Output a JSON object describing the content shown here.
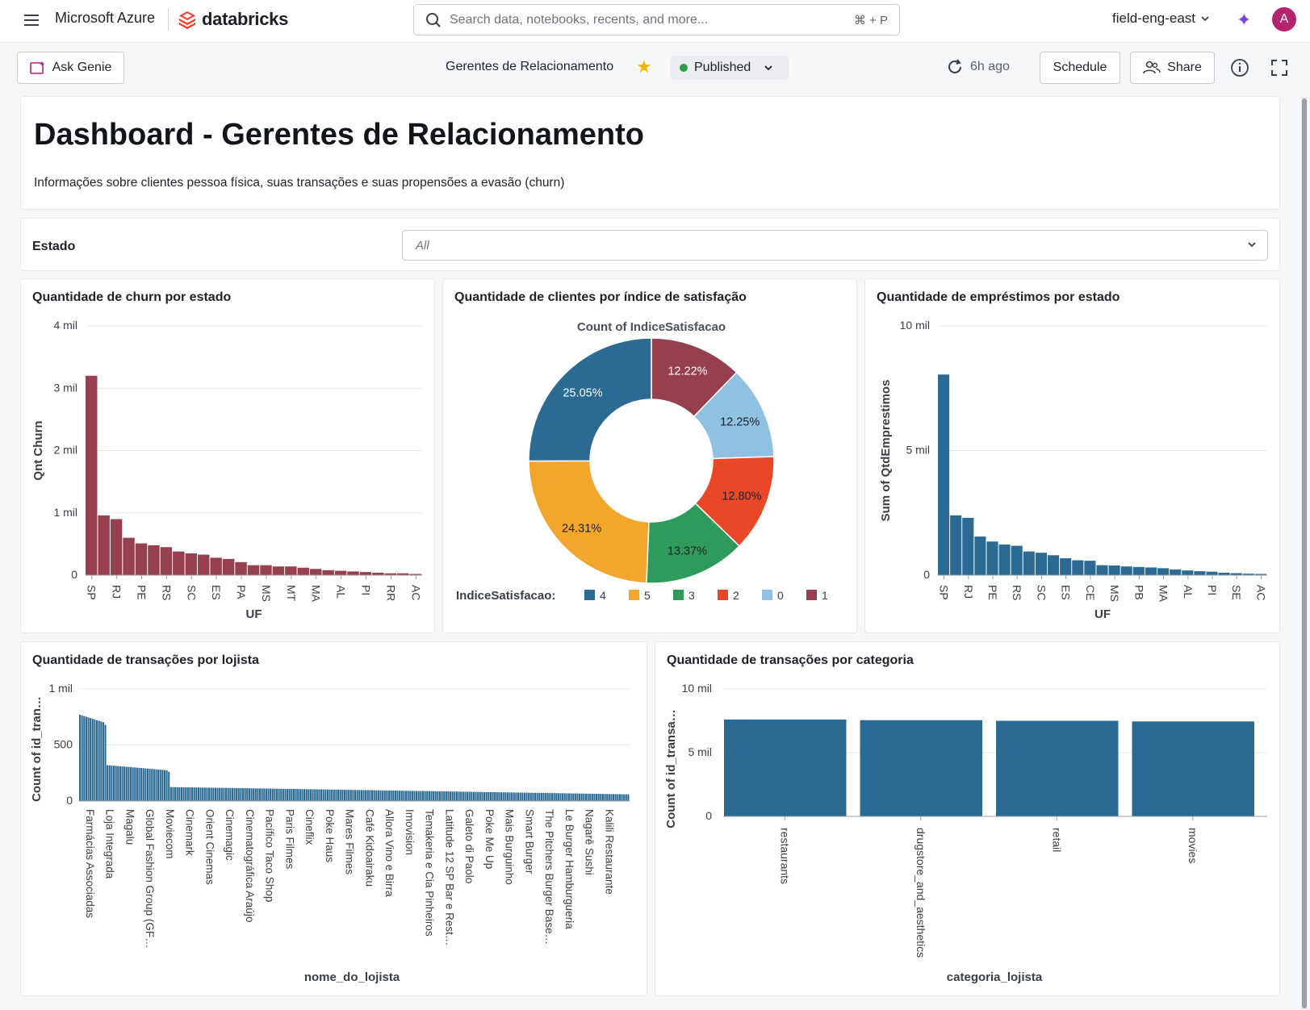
{
  "topbar": {
    "brand_ms": "Microsoft Azure",
    "brand_db": "databricks",
    "search_placeholder": "Search data, notebooks, recents, and more...",
    "search_shortcut": "⌘ + P",
    "workspace": "field-eng-east",
    "avatar_initial": "A"
  },
  "toolbar": {
    "ask_genie": "Ask Genie",
    "dashboard_name": "Gerentes de Relacionamento",
    "status": "Published",
    "refreshed": "6h ago",
    "schedule": "Schedule",
    "share": "Share"
  },
  "header": {
    "title": "Dashboard - Gerentes de Relacionamento",
    "subtitle": "Informações sobre clientes pessoa física, suas transações e suas propensões a evasão (churn)"
  },
  "filter": {
    "label": "Estado",
    "value": "All"
  },
  "colors": {
    "churn": "#963f4e",
    "blue": "#2a6a93",
    "s4": "#2a6a93",
    "s5": "#f2a62b",
    "s3": "#2e9a5b",
    "s2": "#ea4628",
    "s0": "#8fc1e3",
    "s1": "#963f4e"
  },
  "chart_data": [
    {
      "id": "churn",
      "type": "bar",
      "title": "Quantidade de churn por estado",
      "xlabel": "UF",
      "ylabel": "Qnt Churn",
      "ylim": [
        0,
        4000
      ],
      "yticks": [
        "0",
        "1 mil",
        "2 mil",
        "3 mil",
        "4 mil"
      ],
      "xtick_labels": [
        "SP",
        "RJ",
        "PE",
        "RS",
        "SC",
        "ES",
        "PA",
        "MS",
        "MT",
        "MA",
        "AL",
        "PI",
        "RR",
        "AC"
      ],
      "values": [
        3200,
        960,
        900,
        600,
        510,
        480,
        450,
        380,
        350,
        330,
        280,
        260,
        210,
        160,
        160,
        140,
        140,
        120,
        100,
        80,
        70,
        60,
        50,
        40,
        30,
        30,
        20
      ]
    },
    {
      "id": "satisfacao",
      "type": "pie",
      "title": "Quantidade de clientes por índice de satisfação",
      "subtitle": "Count of IndiceSatisfacao",
      "legend_title": "IndiceSatisfacao:",
      "slices": [
        {
          "label": "1",
          "percent": 12.22,
          "text": "12.22%"
        },
        {
          "label": "0",
          "percent": 12.25,
          "text": "12.25%"
        },
        {
          "label": "2",
          "percent": 12.8,
          "text": "12.80%"
        },
        {
          "label": "3",
          "percent": 13.37,
          "text": "13.37%"
        },
        {
          "label": "5",
          "percent": 24.31,
          "text": "24.31%"
        },
        {
          "label": "4",
          "percent": 25.05,
          "text": "25.05%"
        }
      ],
      "legend": [
        "4",
        "5",
        "3",
        "2",
        "0",
        "1"
      ]
    },
    {
      "id": "emprestimos",
      "type": "bar",
      "title": "Quantidade de empréstimos por estado",
      "xlabel": "UF",
      "ylabel": "Sum of QtdEmprestimos",
      "ylim": [
        0,
        10000
      ],
      "yticks": [
        "0",
        "5 mil",
        "10 mil"
      ],
      "xtick_labels": [
        "SP",
        "RJ",
        "PE",
        "RS",
        "SC",
        "ES",
        "CE",
        "MS",
        "PB",
        "MA",
        "AL",
        "PI",
        "SE",
        "AC"
      ],
      "values": [
        8050,
        2400,
        2300,
        1550,
        1350,
        1230,
        1180,
        950,
        900,
        800,
        680,
        600,
        580,
        400,
        390,
        350,
        330,
        310,
        280,
        230,
        190,
        160,
        140,
        100,
        80,
        60,
        50
      ]
    },
    {
      "id": "lojista",
      "type": "bar",
      "title": "Quantidade de transações por lojista",
      "xlabel": "nome_do_lojista",
      "ylabel": "Count of id_tran…",
      "ylim": [
        0,
        1000
      ],
      "yticks": [
        "0",
        "500",
        "1 mil"
      ],
      "xtick_labels": [
        "Farmácias Associadas",
        "Loja Integrada",
        "Magalu",
        "Global Fashion Group (GF…",
        "Moviecom",
        "Cinemark",
        "Orient Cinemas",
        "Cinemagic",
        "Cinematográfica Araújo",
        "Pacífico Taco Shop",
        "Paris Filmes",
        "Cineflix",
        "Poke Haus",
        "Mares Filmes",
        "Café Kidoairaku",
        "Allora Vino e Birra",
        "Imovision",
        "Temakeria e Cia Pinheiros",
        "Latitude 12 SP Bar e Rest…",
        "Galeto di Paolo",
        "Poke Me Up",
        "Mais Burguinho",
        "Smart Burger",
        "The Pitchers Burger Base…",
        "Le Burger Hamburgueria",
        "Nagarê Sushi",
        "Kalili Restaurante"
      ],
      "values_note": "descending counts per lojista"
    },
    {
      "id": "categoria",
      "type": "bar",
      "title": "Quantidade de transações por categoria",
      "xlabel": "categoria_lojista",
      "ylabel": "Count of id_transa…",
      "ylim": [
        0,
        10000
      ],
      "yticks": [
        "0",
        "5 mil",
        "10 mil"
      ],
      "categories": [
        "restaurants",
        "drugstore_and_aesthetics",
        "retail",
        "movies"
      ],
      "values": [
        7600,
        7550,
        7500,
        7450
      ]
    }
  ]
}
